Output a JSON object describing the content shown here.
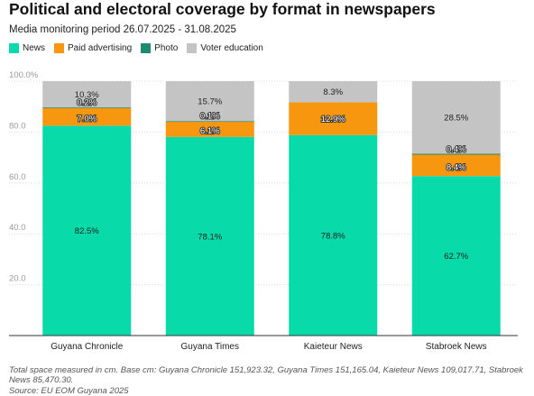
{
  "chart_data": {
    "type": "bar",
    "stacked": true,
    "title": "Political and electoral coverage by format in newspapers",
    "subtitle": "Media monitoring period 26.07.2025 - 31.08.2025",
    "categories": [
      "Guyana Chronicle",
      "Guyana Times",
      "Kaieteur News",
      "Stabroek News"
    ],
    "series": [
      {
        "name": "News",
        "color": "#08dba9",
        "values": [
          82.5,
          78.1,
          78.8,
          62.7
        ],
        "labels": [
          "82.5%",
          "78.1%",
          "78.8%",
          "62.7%"
        ]
      },
      {
        "name": "Paid advertising",
        "color": "#f7960f",
        "values": [
          7.0,
          6.1,
          12.9,
          8.4
        ],
        "labels": [
          "7.0%",
          "6.1%",
          "12.9%",
          "8.4%"
        ]
      },
      {
        "name": "Photo",
        "color": "#1e8a6e",
        "values": [
          0.2,
          0.1,
          0,
          0.4
        ],
        "labels": [
          "0.2%",
          "0.1%",
          "",
          "0.4%"
        ]
      },
      {
        "name": "Voter education",
        "color": "#c4c4c4",
        "values": [
          10.3,
          15.7,
          8.3,
          28.5
        ],
        "labels": [
          "10.3%",
          "15.7%",
          "8.3%",
          "28.5%"
        ]
      }
    ],
    "yticks": [
      {
        "value": 100,
        "label": "100.0%"
      },
      {
        "value": 80,
        "label": "80.0"
      },
      {
        "value": 60,
        "label": "60.0"
      },
      {
        "value": 40,
        "label": "40.0"
      },
      {
        "value": 20,
        "label": "20.0"
      }
    ],
    "ylim": [
      0,
      100
    ],
    "grid": true,
    "legend_position": "top-left",
    "note": "Total space measured in cm. Base cm: Guyana Chronicle 151,923.32, Guyana Times 151,165.04, Kaieteur News 109,017.71, Stabroek News 85,470.30.",
    "source": "Source: EU EOM Guyana 2025"
  }
}
